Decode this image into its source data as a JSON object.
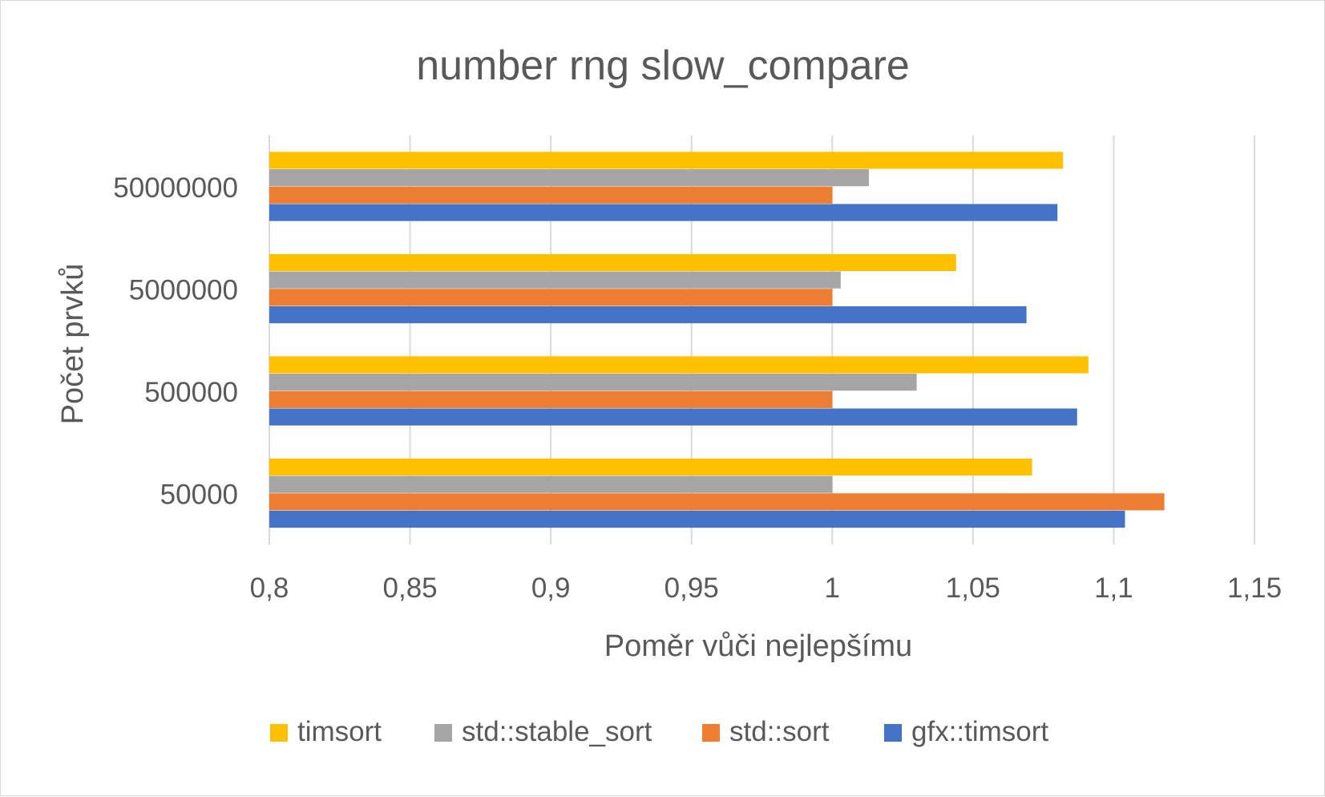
{
  "chart_data": {
    "type": "bar",
    "orientation": "horizontal",
    "title": "number rng slow_compare",
    "xlabel": "Poměr vůči nejlepšímu",
    "ylabel": "Počet prvků",
    "xlim": [
      0.8,
      1.15
    ],
    "xticks": [
      0.8,
      0.85,
      0.9,
      0.95,
      1,
      1.05,
      1.1,
      1.15
    ],
    "xtick_labels": [
      "0,8",
      "0,85",
      "0,9",
      "0,95",
      "1",
      "1,05",
      "1,1",
      "1,15"
    ],
    "grid": "vertical",
    "legend_position": "bottom",
    "categories": [
      "50000",
      "500000",
      "5000000",
      "50000000"
    ],
    "series": [
      {
        "name": "gfx::timsort",
        "color": "#4472C4",
        "values": [
          1.104,
          1.087,
          1.069,
          1.08
        ]
      },
      {
        "name": "std::sort",
        "color": "#ED7D31",
        "values": [
          1.118,
          1.0,
          1.0,
          1.0
        ]
      },
      {
        "name": "std::stable_sort",
        "color": "#A5A5A5",
        "values": [
          1.0,
          1.03,
          1.003,
          1.013
        ]
      },
      {
        "name": "timsort",
        "color": "#FFC000",
        "values": [
          1.071,
          1.091,
          1.044,
          1.082
        ]
      }
    ],
    "legend_order": [
      "timsort",
      "std::stable_sort",
      "std::sort",
      "gfx::timsort"
    ],
    "colors": {
      "gridline": "#d9d9d9",
      "text": "#595959"
    }
  }
}
